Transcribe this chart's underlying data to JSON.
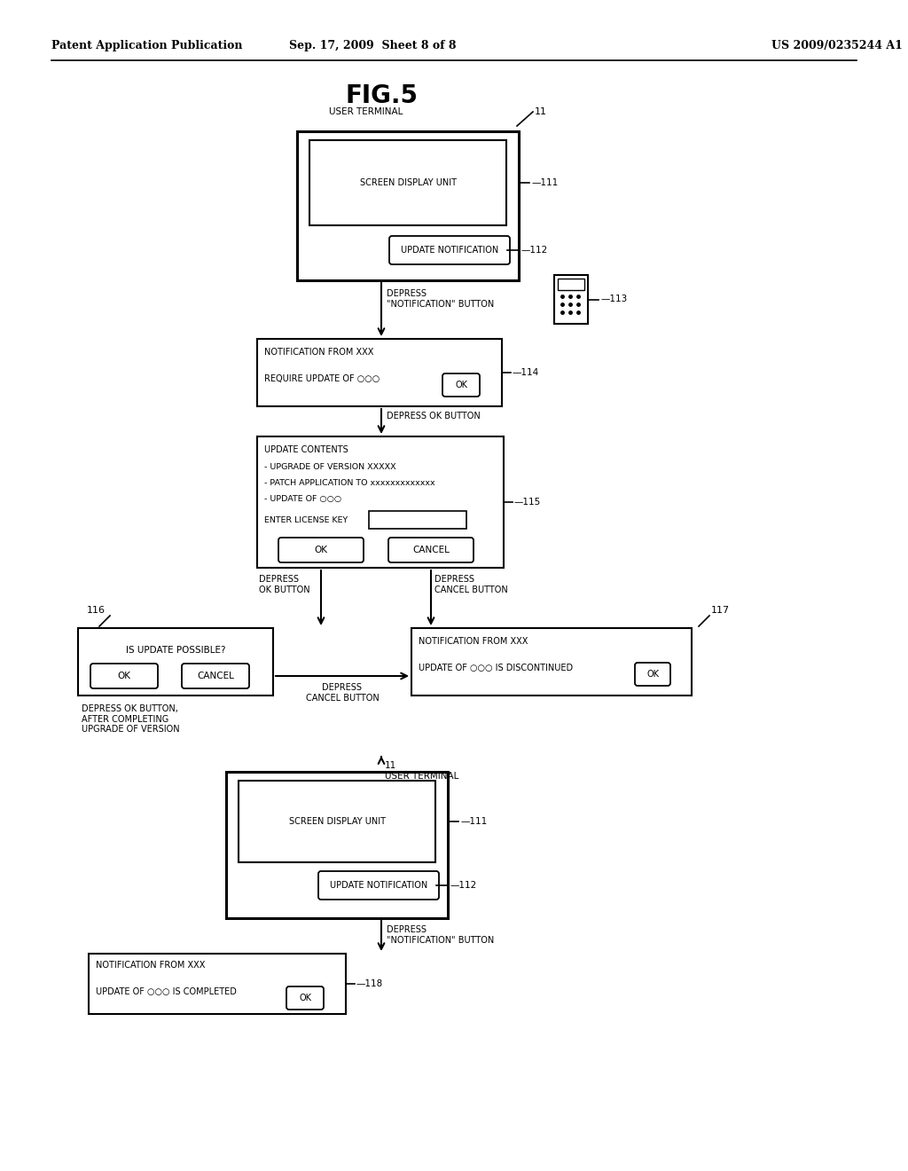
{
  "bg_color": "#ffffff",
  "header_left": "Patent Application Publication",
  "header_center": "Sep. 17, 2009  Sheet 8 of 8",
  "header_right": "US 2009/0235244 A1",
  "fig_title": "FIG.5"
}
